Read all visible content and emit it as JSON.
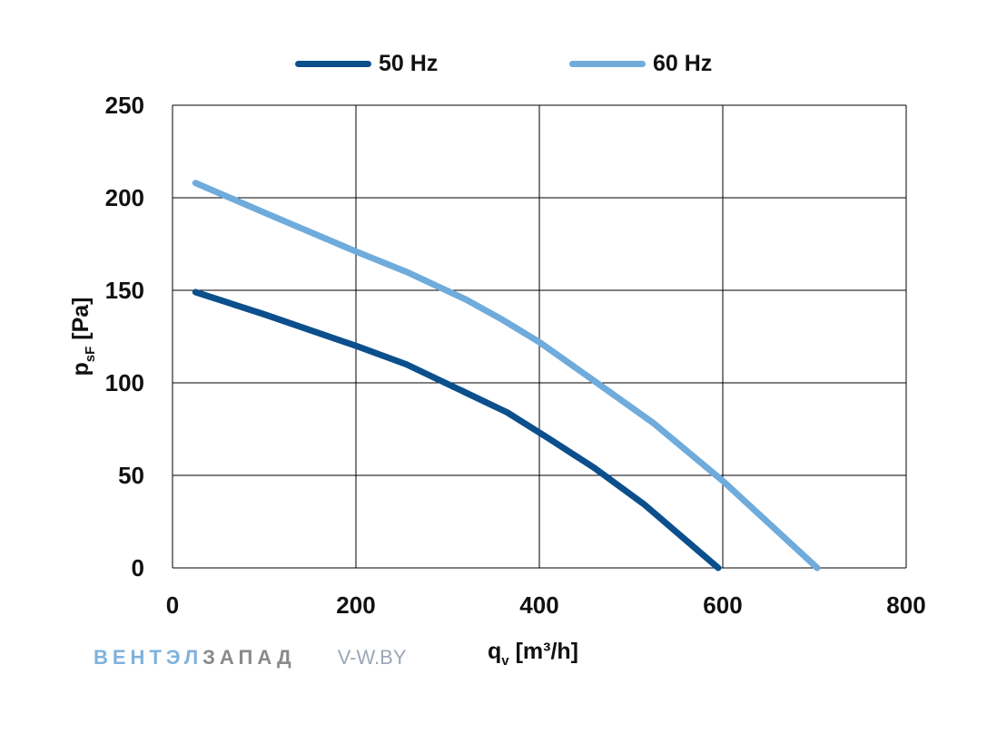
{
  "chart_data": {
    "type": "line",
    "xlabel": "q",
    "xlabel_sub": "v",
    "xlabel_unit": " [m³/h]",
    "ylabel": "p",
    "ylabel_sub": "sF",
    "ylabel_unit": " [Pa]",
    "xlim": [
      0,
      800
    ],
    "ylim": [
      0,
      250
    ],
    "xticks": [
      0,
      200,
      400,
      600,
      800
    ],
    "yticks": [
      0,
      50,
      100,
      150,
      200,
      250
    ],
    "grid": true,
    "legend_position": "top",
    "series": [
      {
        "name": "50 Hz",
        "color": "#0b4f8c",
        "x": [
          25,
          100,
          200,
          255,
          310,
          365,
          410,
          460,
          515,
          595
        ],
        "y": [
          149,
          137,
          120,
          110,
          97,
          84,
          70,
          54,
          34,
          0
        ]
      },
      {
        "name": "60 Hz",
        "color": "#6fabdb",
        "x": [
          25,
          100,
          200,
          255,
          320,
          360,
          400,
          460,
          525,
          600,
          703
        ],
        "y": [
          208,
          192,
          171,
          160,
          145,
          134,
          122,
          101,
          78,
          47,
          0
        ]
      }
    ]
  },
  "watermark": {
    "brand_part1": "ВЕНТЭЛ",
    "brand_part2": "ЗАПАД",
    "url": "V-W.BY"
  }
}
